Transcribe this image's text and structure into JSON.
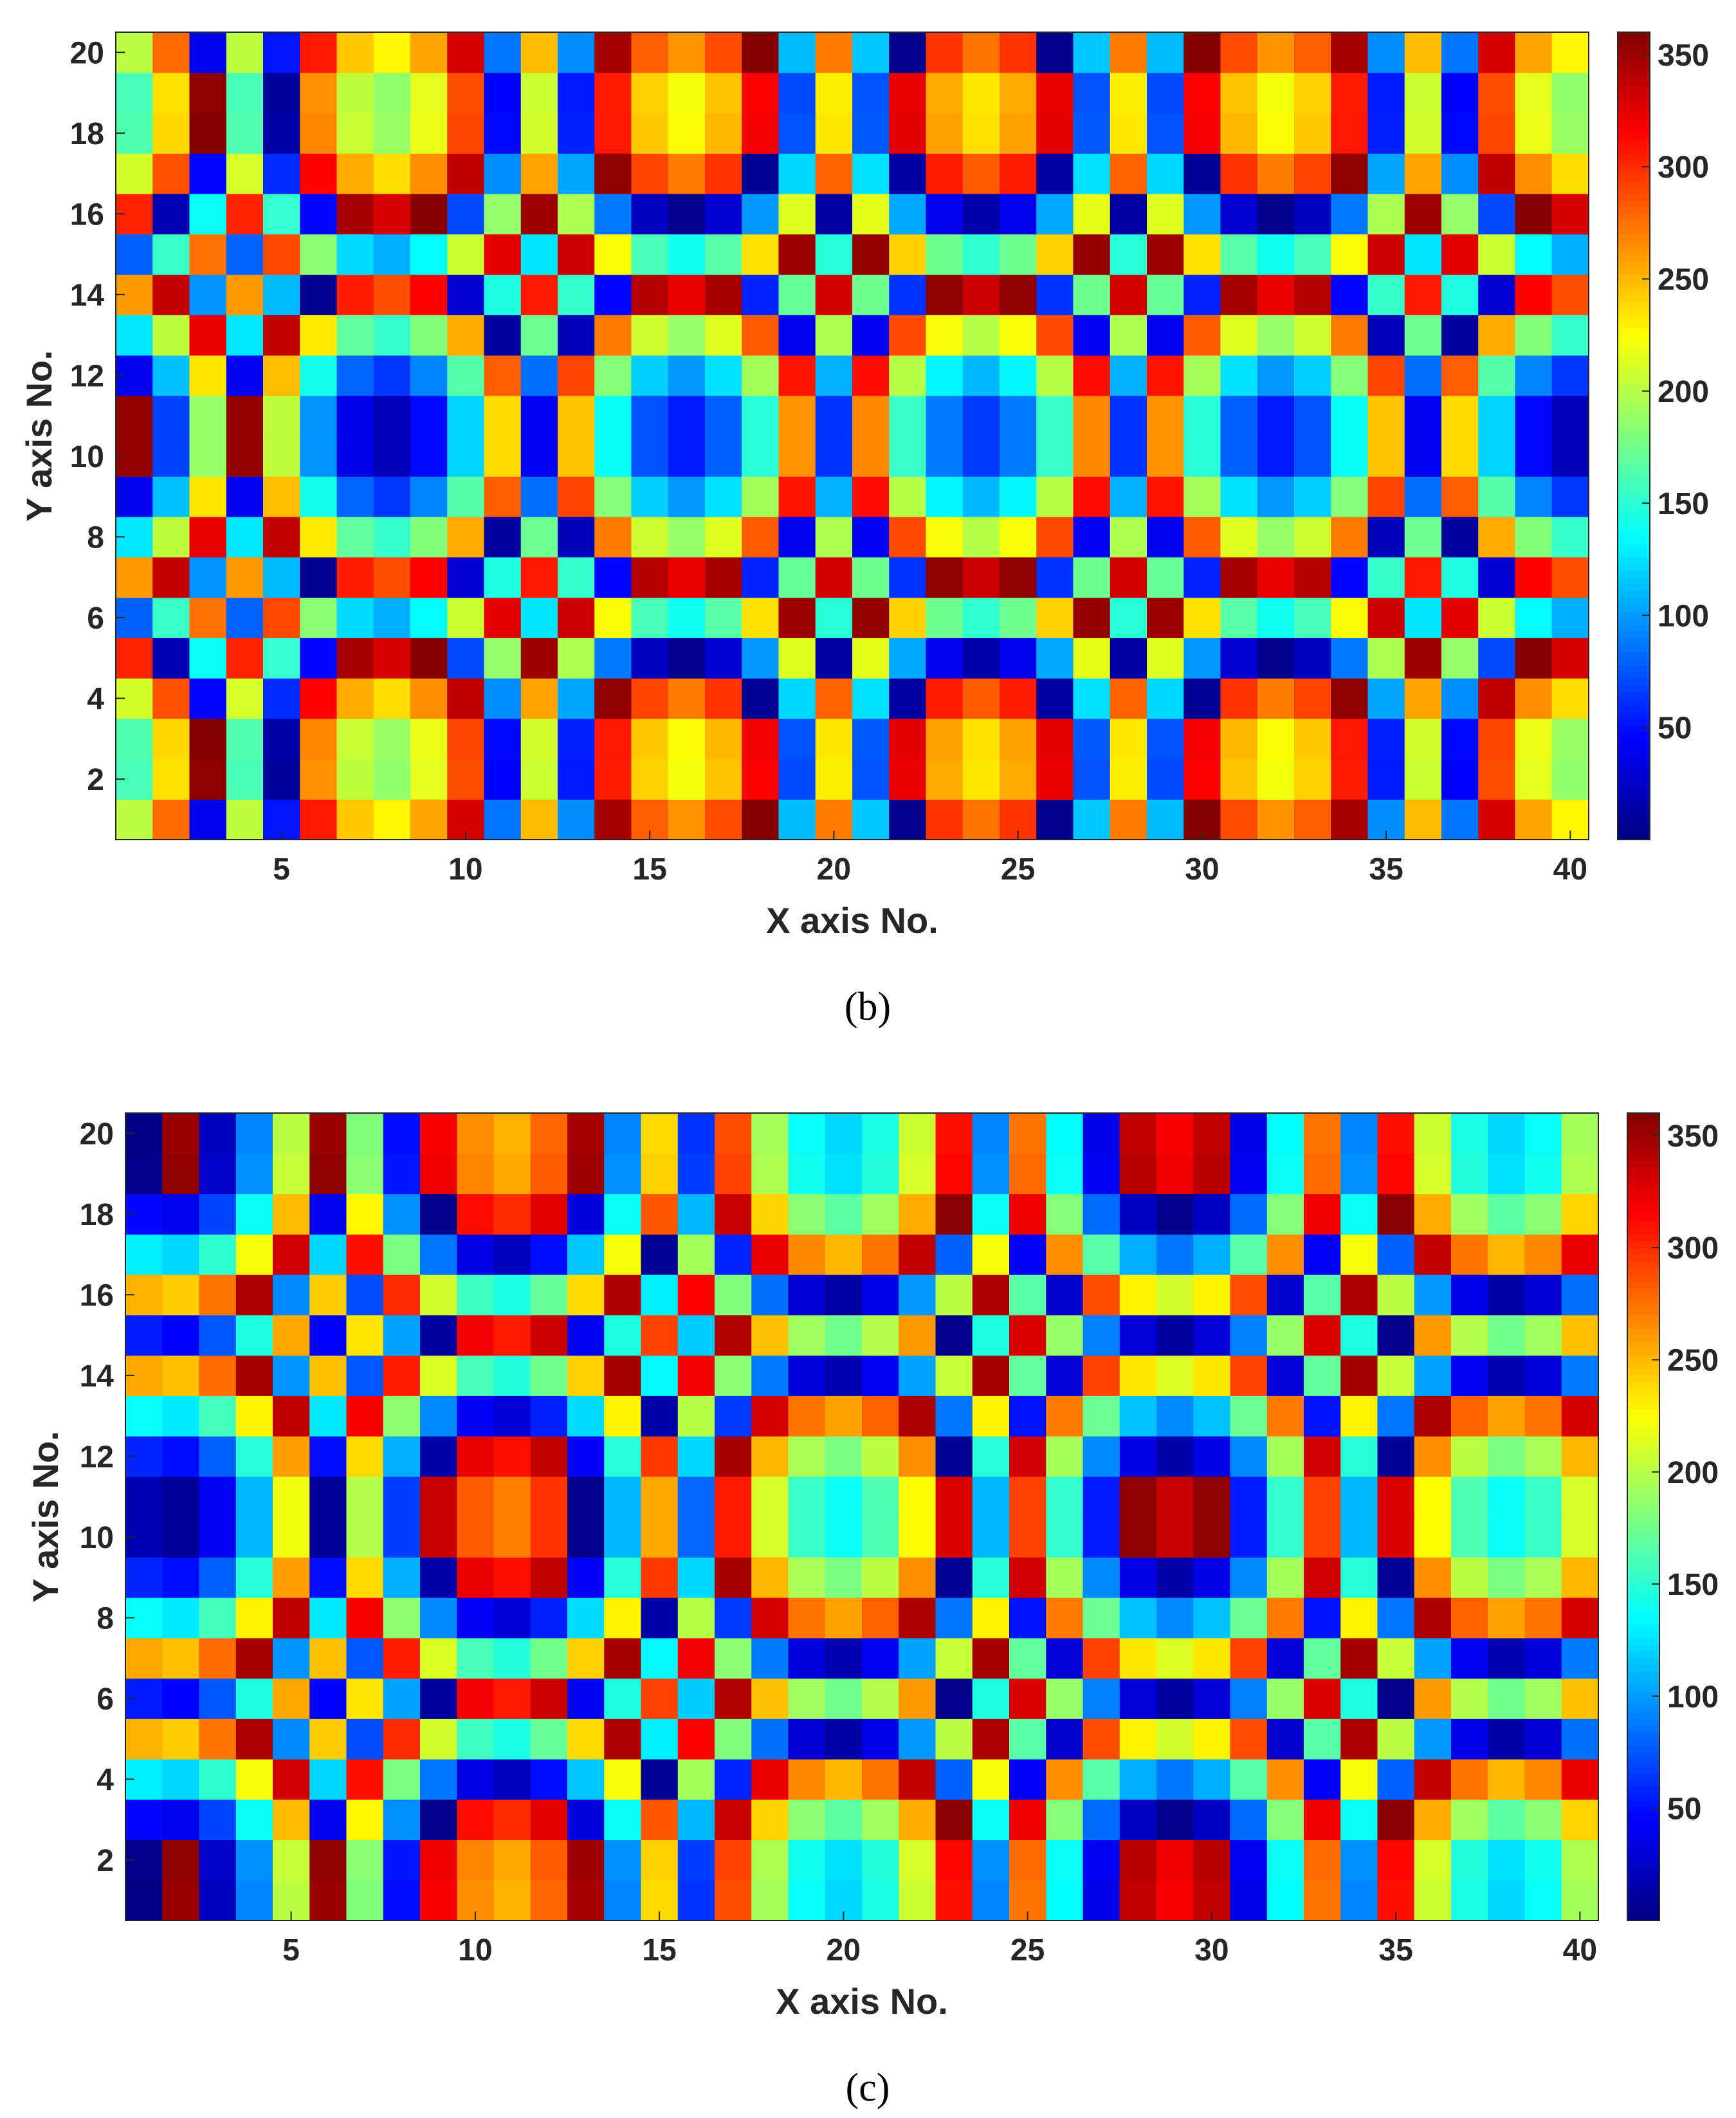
{
  "chart_data": [
    {
      "type": "heatmap",
      "panel_label": "(b)",
      "xlabel": "X axis No.",
      "ylabel": "Y axis No.",
      "x_range": [
        1,
        40
      ],
      "y_range": [
        1,
        20
      ],
      "x_ticks": [
        5,
        10,
        15,
        20,
        25,
        30,
        35,
        40
      ],
      "y_ticks": [
        2,
        4,
        6,
        8,
        10,
        12,
        14,
        16,
        18,
        20
      ],
      "colorbar": {
        "range": [
          0,
          360
        ],
        "ticks": [
          50,
          100,
          150,
          200,
          250,
          300,
          350
        ],
        "colormap": "jet"
      },
      "pattern": {
        "center_x": 24,
        "center_y": 10.5,
        "base": 60,
        "radial_rate": 0.62,
        "linear_rate": 0.22,
        "sx": 1.0,
        "sy": 1.0,
        "note": ""
      },
      "grid": false
    },
    {
      "type": "heatmap",
      "panel_label": "(c)",
      "xlabel": "X axis No.",
      "ylabel": "Y axis No.",
      "x_range": [
        1,
        40
      ],
      "y_range": [
        1,
        20
      ],
      "x_ticks": [
        5,
        10,
        15,
        20,
        25,
        30,
        35,
        40
      ],
      "y_ticks": [
        2,
        4,
        6,
        8,
        10,
        12,
        14,
        16,
        18,
        20
      ],
      "colorbar": {
        "range": [
          0,
          360
        ],
        "ticks": [
          50,
          100,
          150,
          200,
          250,
          300,
          350
        ],
        "colormap": "jet"
      },
      "pattern": {
        "center_x": 29,
        "center_y": 10.5,
        "base": 330,
        "radial_rate": 0.55,
        "linear_rate": 0.22,
        "sx": 1.0,
        "sy": 1.0,
        "note": ""
      },
      "grid": false
    }
  ]
}
